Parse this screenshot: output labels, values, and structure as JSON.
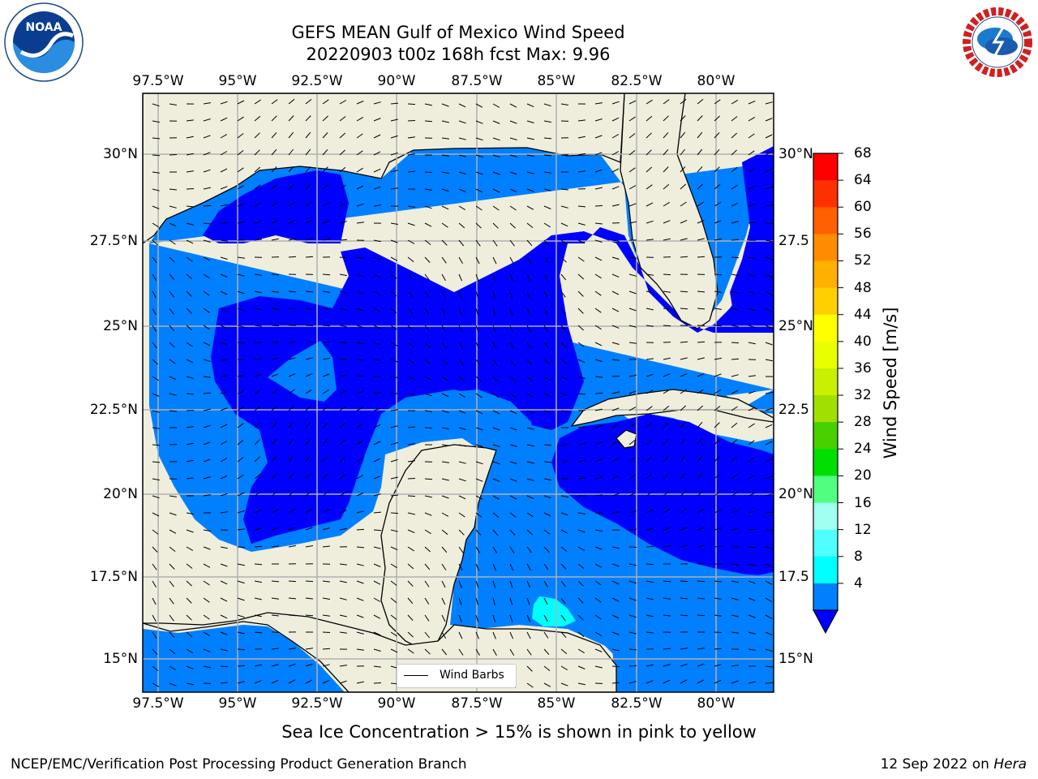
{
  "title_line1": "GEFS MEAN Gulf of Mexico Wind Speed",
  "title_line2": "20220903 t00z 168h fcst   Max: 9.96",
  "lon_ticks": [
    "97.5°W",
    "95°W",
    "92.5°W",
    "90°W",
    "87.5°W",
    "85°W",
    "82.5°W",
    "80°W"
  ],
  "lat_ticks_left": [
    "30°N",
    "27.5°N",
    "25°N",
    "22.5°N",
    "20°N",
    "17.5°N",
    "15°N"
  ],
  "lat_ticks_right": [
    "30°N",
    "27.5",
    "25°N",
    "22.5",
    "20°N",
    "17.5",
    "15°N"
  ],
  "colorbar": {
    "title": "Wind Speed [m/s]",
    "labels": [
      "68",
      "64",
      "60",
      "56",
      "52",
      "48",
      "44",
      "40",
      "36",
      "32",
      "28",
      "24",
      "20",
      "16",
      "12",
      "8",
      "4"
    ],
    "colors": [
      "#ff0000",
      "#ff3000",
      "#ff6000",
      "#ff8c00",
      "#ffb000",
      "#ffd000",
      "#ffff00",
      "#e8ff00",
      "#c8f000",
      "#a0e000",
      "#48d000",
      "#00e000",
      "#50ff80",
      "#a0fff0",
      "#50ffff",
      "#00ffff",
      "#0080ff"
    ],
    "extend_color": "#0000ff"
  },
  "legend": {
    "label": "Wind Barbs"
  },
  "caption": "Sea Ice Concentration > 15% is shown in pink to yellow",
  "footer_left": "NCEP/EMC/Verification Post Processing Product Generation Branch",
  "footer_right_prefix": "12 Sep 2022 on ",
  "footer_right_host": "Hera",
  "colors": {
    "land": "#efeedd",
    "wind_4_8": "#0080ff",
    "wind_below_4": "#0000ff",
    "wind_8_12": "#00ffff"
  },
  "logos": {
    "left": "NOAA",
    "left_ring": "NATIONAL OCEANIC AND ATMOSPHERIC ADMINISTRATION · U.S. DEPARTMENT OF COMMERCE",
    "right_ring": "NATIONAL WEATHER SERVICE"
  }
}
